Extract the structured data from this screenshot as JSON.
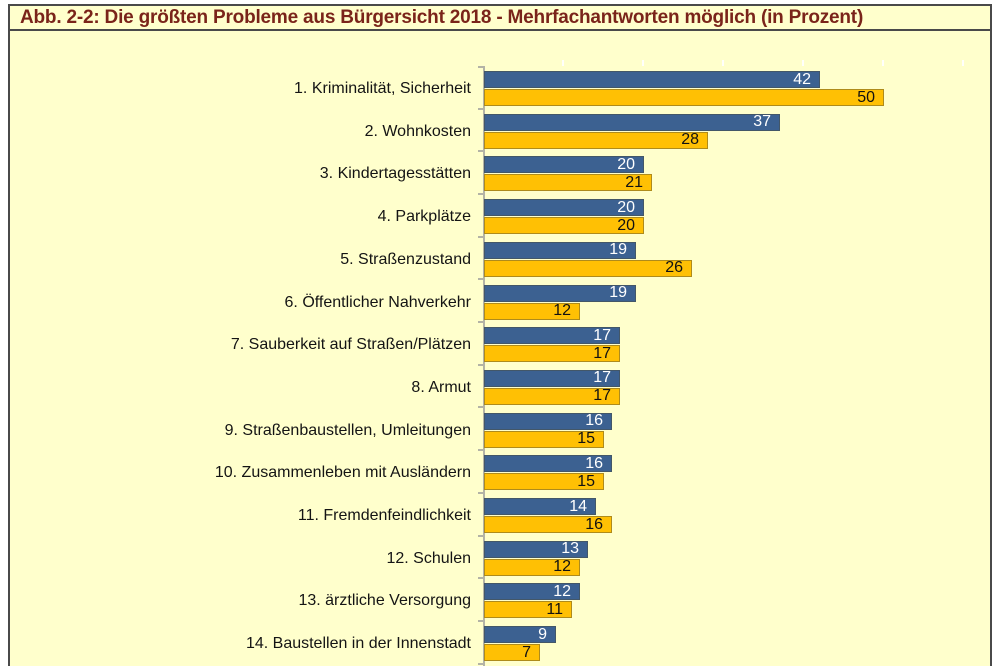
{
  "title_bar": {
    "text": "Abb. 2-2: Die größten Probleme aus Bürgersicht 2018 - Mehrfachantworten möglich (in Prozent)"
  },
  "chart_data": {
    "type": "bar",
    "orientation": "horizontal",
    "title": "Abb. 2-2: Die größten Probleme aus Bürgersicht 2018 - Mehrfachantworten möglich (in Prozent)",
    "value_unit": "Prozent",
    "categories": [
      "1. Kriminalität, Sicherheit",
      "2. Wohnkosten",
      "3. Kindertagesstätten",
      "4. Parkplätze",
      "5. Straßenzustand",
      "6. Öffentlicher Nahverkehr",
      "7. Sauberkeit auf Straßen/Plätzen",
      "8. Armut",
      "9. Straßenbaustellen, Umleitungen",
      "10. Zusammenleben mit Ausländern",
      "11. Fremdenfeindlichkeit",
      "12. Schulen",
      "13. ärztliche Versorgung",
      "14. Baustellen in der Innenstadt"
    ],
    "series": [
      {
        "id": "blue",
        "color": "#3C6191",
        "label_color": "#FFFFFF",
        "values": [
          42,
          37,
          20,
          20,
          19,
          19,
          17,
          17,
          16,
          16,
          14,
          13,
          12,
          9
        ]
      },
      {
        "id": "orange",
        "color": "#FFC004",
        "label_color": "#111111",
        "values": [
          50,
          28,
          21,
          20,
          26,
          12,
          17,
          17,
          15,
          15,
          16,
          12,
          11,
          7
        ]
      }
    ],
    "xlim": [
      0,
      63
    ],
    "value_axis_tick_step": 10,
    "grid": "off",
    "legend": "none",
    "value_labels": "inside-end",
    "background": "#FFFFCC"
  },
  "style": {
    "page_background": "#FFFFFF",
    "chart_background": "#FFFFCC",
    "frame_border_color": "#4A4A4A",
    "title_color": "#7A241A",
    "axis_color": "#B3B3A6",
    "category_text_color": "#141414"
  }
}
